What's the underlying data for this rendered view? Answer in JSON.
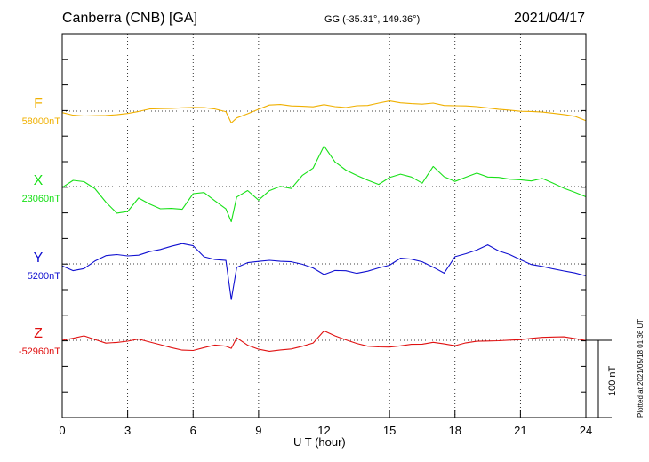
{
  "header": {
    "station": "Canberra (CNB)  [GA]",
    "coords": "GG (-35.31°, 149.36°)",
    "date": "2021/04/17"
  },
  "footer": {
    "xlabel": "U T (hour)",
    "plotted": "Plotted at 2021/05/18 01:36 UT",
    "scale_label": "100 nT"
  },
  "colors": {
    "F": "#f0b000",
    "X": "#18e018",
    "Y": "#1010d0",
    "Z": "#e01010"
  },
  "chart_data": {
    "type": "line",
    "title": "Canberra (CNB)  [GA]",
    "xlabel": "U T (hour)",
    "xlim": [
      0,
      24
    ],
    "xticks": [
      "0",
      "3",
      "6",
      "9",
      "12",
      "15",
      "18",
      "21",
      "24"
    ],
    "scale_bar_nT": 100,
    "x": [
      0,
      0.5,
      1,
      1.5,
      2,
      2.5,
      3,
      3.5,
      4,
      4.5,
      5,
      5.5,
      6,
      6.5,
      7,
      7.5,
      7.75,
      8,
      8.5,
      9,
      9.5,
      10,
      10.5,
      11,
      11.5,
      12,
      12.5,
      13,
      13.5,
      14,
      14.5,
      15,
      15.5,
      16,
      16.5,
      17,
      17.5,
      18,
      18.5,
      19,
      19.5,
      20,
      20.5,
      21,
      21.5,
      22,
      22.5,
      23,
      23.5,
      24
    ],
    "series": [
      {
        "name": "F",
        "baseline_label": "58000nT",
        "color": "#f0b000",
        "values": [
          -2,
          -6,
          -7,
          -6,
          -5,
          -4,
          -3,
          -1,
          2,
          3,
          4,
          5,
          5,
          4,
          2,
          -1,
          -15,
          -8,
          -3,
          2,
          7,
          8,
          7,
          7,
          6,
          8,
          5,
          4,
          7,
          8,
          11,
          13,
          10,
          9,
          9,
          11,
          8,
          7,
          6,
          5,
          4,
          3,
          2,
          0,
          -1,
          -2,
          -3,
          -4,
          -6,
          -12
        ]
      },
      {
        "name": "X",
        "baseline_label": "23060nT",
        "color": "#18e018",
        "values": [
          -2,
          8,
          7,
          -2,
          -20,
          -35,
          -33,
          -15,
          -22,
          -28,
          -28,
          -30,
          -10,
          -8,
          -18,
          -28,
          -45,
          -14,
          -6,
          -18,
          -5,
          1,
          -2,
          14,
          23,
          52,
          32,
          22,
          15,
          8,
          2,
          11,
          16,
          13,
          5,
          26,
          12,
          6,
          12,
          18,
          13,
          12,
          9,
          8,
          7,
          11,
          5,
          -2,
          -8,
          -14
        ]
      },
      {
        "name": "Y",
        "baseline_label": "5200nT",
        "color": "#1010d0",
        "values": [
          -2,
          -8,
          -6,
          3,
          10,
          12,
          11,
          12,
          16,
          18,
          22,
          26,
          24,
          10,
          6,
          4,
          -47,
          -5,
          2,
          4,
          5,
          3,
          2,
          -1,
          -5,
          -13,
          -8,
          -9,
          -13,
          -10,
          -5,
          -1,
          8,
          6,
          2,
          -5,
          -12,
          10,
          14,
          18,
          24,
          16,
          12,
          6,
          0,
          -3,
          -7,
          -10,
          -12,
          -15
        ]
      },
      {
        "name": "Z",
        "baseline_label": "-52960nT",
        "color": "#e01010",
        "values": [
          0,
          2,
          5,
          1,
          -3,
          -2,
          -1,
          1,
          -3,
          -6,
          -9,
          -12,
          -13,
          -10,
          -7,
          -8,
          -10,
          4,
          -6,
          -12,
          -15,
          -13,
          -11,
          -7,
          -3,
          12,
          5,
          0,
          -4,
          -7,
          -8,
          -9,
          -8,
          -6,
          -5,
          -2,
          -4,
          -7,
          -4,
          -2,
          -1,
          0,
          1,
          1,
          2,
          3,
          4,
          5,
          3,
          0
        ]
      }
    ]
  }
}
